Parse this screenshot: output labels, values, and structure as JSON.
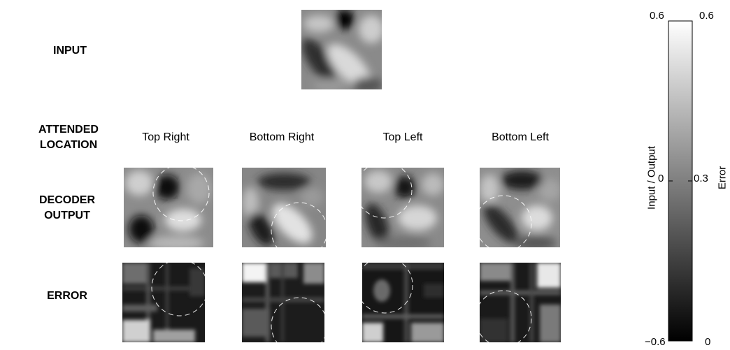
{
  "rows": {
    "input": "INPUT",
    "attended": [
      "ATTENDED",
      "LOCATION"
    ],
    "decoder": [
      "DECODER",
      "OUTPUT"
    ],
    "error": "ERROR"
  },
  "columns": [
    "Top Right",
    "Bottom Right",
    "Top Left",
    "Bottom Left"
  ],
  "colorbar": {
    "left_label": "Input / Output",
    "right_label": "Error",
    "left_ticks": [
      "0.6",
      "0",
      "−0.6"
    ],
    "right_ticks": [
      "0.6",
      "0.3",
      "0"
    ]
  }
}
